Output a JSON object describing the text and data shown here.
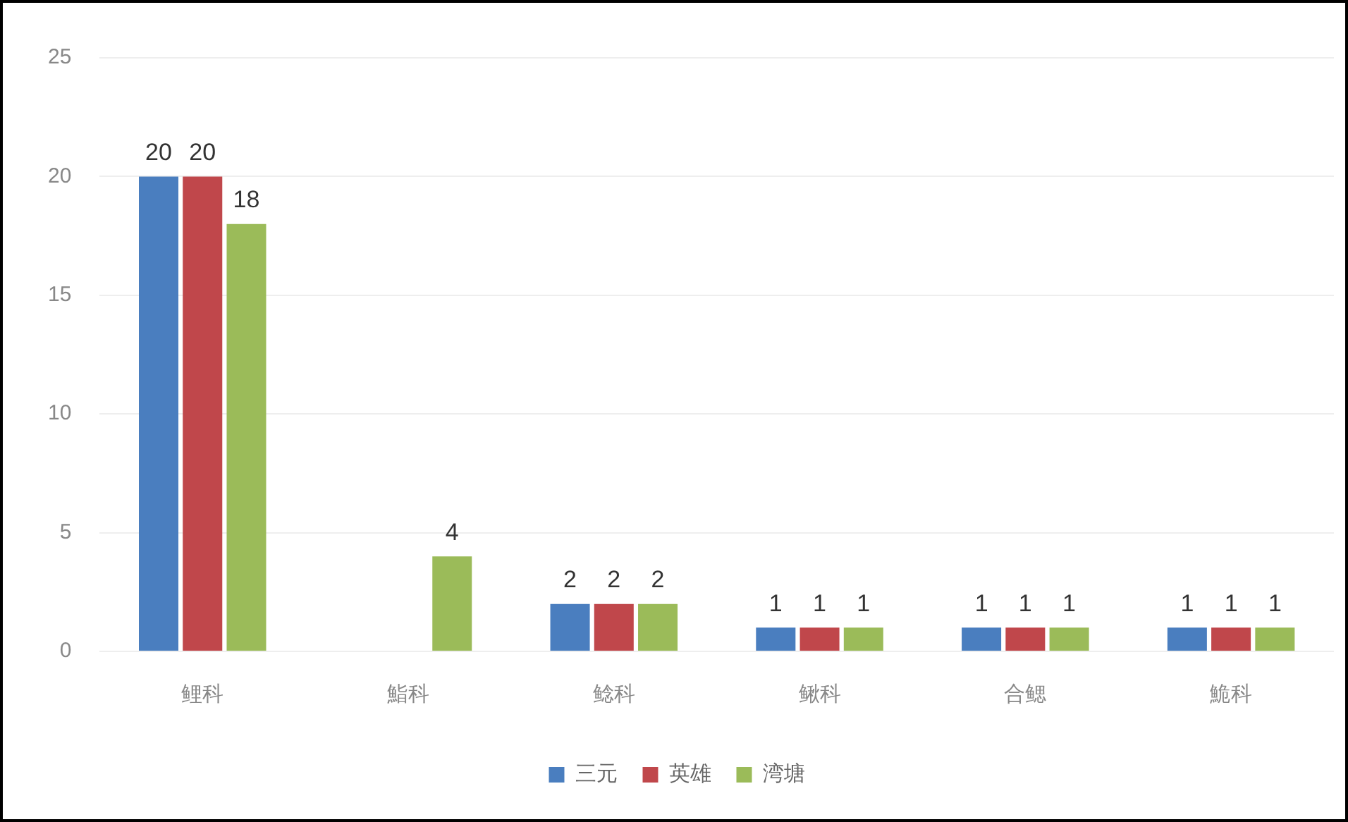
{
  "chart_data": {
    "type": "bar",
    "categories": [
      "鲤科",
      "鮨科",
      "鲶科",
      "鳅科",
      "合鳃",
      "鮠科"
    ],
    "series": [
      {
        "name": "三元",
        "color": "#4a7ebf",
        "values": [
          20,
          0,
          2,
          1,
          1,
          1
        ],
        "value_labels": [
          "20",
          null,
          "2",
          "1",
          "1",
          "1"
        ]
      },
      {
        "name": "英雄",
        "color": "#c0474b",
        "values": [
          20,
          0,
          2,
          1,
          1,
          1
        ],
        "value_labels": [
          "20",
          null,
          "2",
          "1",
          "1",
          "1"
        ]
      },
      {
        "name": "湾塘",
        "color": "#9bbb59",
        "values": [
          18,
          4,
          2,
          1,
          1,
          1
        ],
        "value_labels": [
          "18",
          "4",
          "2",
          "1",
          "1",
          "1"
        ]
      }
    ],
    "ylim": [
      0,
      25
    ],
    "yticks": [
      0,
      5,
      10,
      15,
      20,
      25
    ],
    "grid": "y",
    "legend": "bottom"
  }
}
